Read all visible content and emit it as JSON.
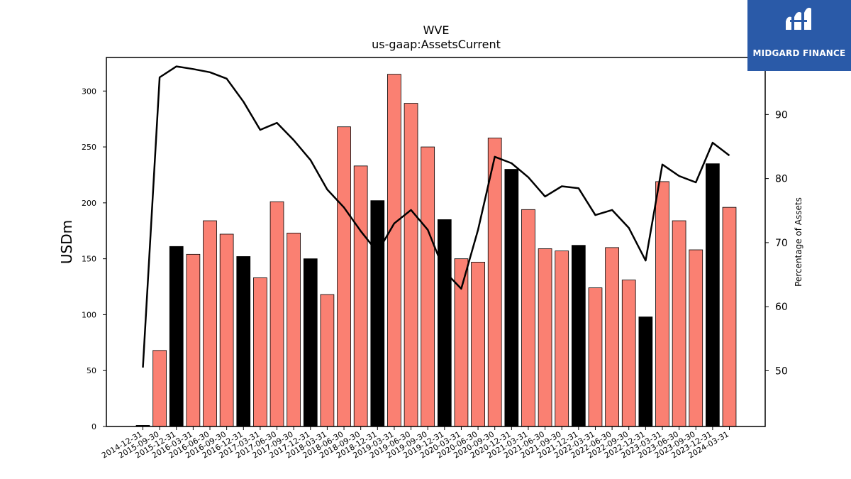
{
  "chart_data": {
    "type": "bar",
    "title": "WVE",
    "subtitle": "us-gaap:AssetsCurrent",
    "ylabel_left": "USDm",
    "ylabel_right": "Percentage of Assets",
    "ylim_left": [
      0,
      330
    ],
    "ylim_right": [
      41.3,
      98.9
    ],
    "yticks_left": [
      0,
      50,
      100,
      150,
      200,
      250,
      300
    ],
    "yticks_right": [
      50,
      60,
      70,
      80,
      90
    ],
    "categories": [
      "2014-12-31",
      "2015-09-30",
      "2015-12-31",
      "2016-03-31",
      "2016-06-30",
      "2016-09-30",
      "2016-12-31",
      "2017-03-31",
      "2017-06-30",
      "2017-09-30",
      "2017-12-31",
      "2018-03-31",
      "2018-06-30",
      "2018-09-30",
      "2018-12-31",
      "2019-03-31",
      "2019-06-30",
      "2019-09-30",
      "2019-12-31",
      "2020-03-31",
      "2020-06-30",
      "2020-09-30",
      "2020-12-31",
      "2021-03-31",
      "2021-06-30",
      "2021-09-30",
      "2021-12-31",
      "2022-03-31",
      "2022-06-30",
      "2022-09-30",
      "2022-12-31",
      "2023-03-31",
      "2023-06-30",
      "2023-09-30",
      "2023-12-31",
      "2024-03-31"
    ],
    "series": [
      {
        "type": "bar",
        "values": [
          1,
          68,
          161,
          154,
          184,
          172,
          152,
          133,
          201,
          173,
          150,
          118,
          268,
          233,
          202,
          315,
          289,
          250,
          185,
          150,
          147,
          258,
          230,
          194,
          159,
          157,
          162,
          124,
          160,
          131,
          98,
          219,
          184,
          158,
          235,
          196
        ],
        "year_end": [
          true,
          false,
          true,
          false,
          false,
          false,
          true,
          false,
          false,
          false,
          true,
          false,
          false,
          false,
          true,
          false,
          false,
          false,
          true,
          false,
          false,
          false,
          true,
          false,
          false,
          false,
          true,
          false,
          false,
          false,
          true,
          false,
          false,
          false,
          true,
          false
        ]
      },
      {
        "type": "line",
        "axis": "right",
        "values": [
          50.5,
          95.8,
          97.5,
          97.1,
          96.6,
          95.6,
          92.0,
          87.6,
          88.7,
          86.0,
          82.9,
          78.3,
          75.5,
          71.8,
          68.5,
          73.0,
          75.1,
          72.0,
          65.5,
          62.8,
          72.0,
          83.4,
          82.4,
          80.2,
          77.2,
          78.8,
          78.5,
          74.3,
          75.1,
          72.3,
          67.2,
          82.2,
          80.4,
          79.4,
          85.6,
          83.6
        ]
      }
    ],
    "colors": {
      "bar": "#fa8072",
      "bar_year_end": "#000000",
      "line": "#000000"
    },
    "grid": false
  },
  "logo": {
    "text": "MIDGARD FINANCE",
    "color": "#2a5aa8"
  }
}
